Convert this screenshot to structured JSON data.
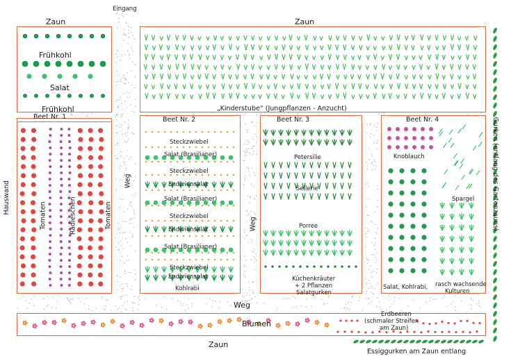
{
  "labels": {
    "zaun_top_left": "Zaun",
    "eingang": "Eingang",
    "zaun_top_right": "Zaun",
    "fruehkohl_1": "Frühkohl",
    "salat_top": "Salat",
    "fruehkohl_2": "Frühkohl",
    "kinderstube": "„Kinderstube“ (Jungpflanzen - Anzucht)",
    "beet1_title": "Beet Nr. 1",
    "beet2_title": "Beet Nr. 2",
    "beet3_title": "Beet Nr. 3",
    "beet4_title": "Beet Nr. 4",
    "hauswand": "Hauswand",
    "tomaten_1": "Tomaten",
    "radieschen": "Radieschen",
    "tomaten_2": "Tomaten",
    "weg_left": "Weg",
    "weg_mid": "Weg",
    "weg_bottom": "Weg",
    "b2_steckzwiebel_1": "Steckzwiebel",
    "b2_salat_1": "Salat (Brasilianer)",
    "b2_steckzwiebel_2": "Steckzwiebel",
    "b2_endiviensalat_1": "Endiviensalat",
    "b2_salat_2": "Salat (Brasilianer)",
    "b2_steckzwiebel_3": "Steckzwiebel",
    "b2_endiviensalat_2": "Endiviensalat",
    "b2_salat_3": "Salat (Brasilianer)",
    "b2_steckzwiebel_4": "Steckzwiebel",
    "b2_endiviensalat_3": "Endiviensalat",
    "b2_kohlrabi": "Kohlrabi",
    "b3_petersilie": "Petersilie",
    "b3_sellerie": "Sellerie",
    "b3_porree": "Porree",
    "b3_kuechenkraeuter": "Küchenkräuter",
    "b3_pflanzen": "+ 2 Pflanzen",
    "b3_salatgurken": "Salatgurken",
    "b4_knoblauch": "Knoblauch",
    "b4_spargel": "Spargel",
    "b4_salat_kohlrabi": "Salat, Kohlrabi,",
    "b4_rasch_1": "rasch wachsende",
    "b4_rasch_2": "Kulturen",
    "gurken": "Gurken (entlang des Gartenzauns)",
    "blumen": "Blumen",
    "erdbeeren_1": "Erdbeeren",
    "erdbeeren_2": "(schmaler Streifen",
    "erdbeeren_3": "am Zaun)",
    "zaun_bottom": "Zaun",
    "essiggurken": "Essiggurken am Zaun entlang"
  },
  "colors": {
    "border": "#d96a3c",
    "path_gravel": "#b9b9b9",
    "cabbage": "#1f9a4a",
    "lettuce": "#3cc26a",
    "seedling": "#4fbf5f",
    "tomato": "#e0463f",
    "radish": "#b04aa8",
    "onion_dot": "#e0a23a",
    "herb": "#2e8b3c",
    "garlic": "#cc4f9c",
    "flower_pink": "#e64f9c",
    "flower_orange": "#f08a3a",
    "strawberry": "#e0463f",
    "cucumber": "#2e9a3e"
  }
}
